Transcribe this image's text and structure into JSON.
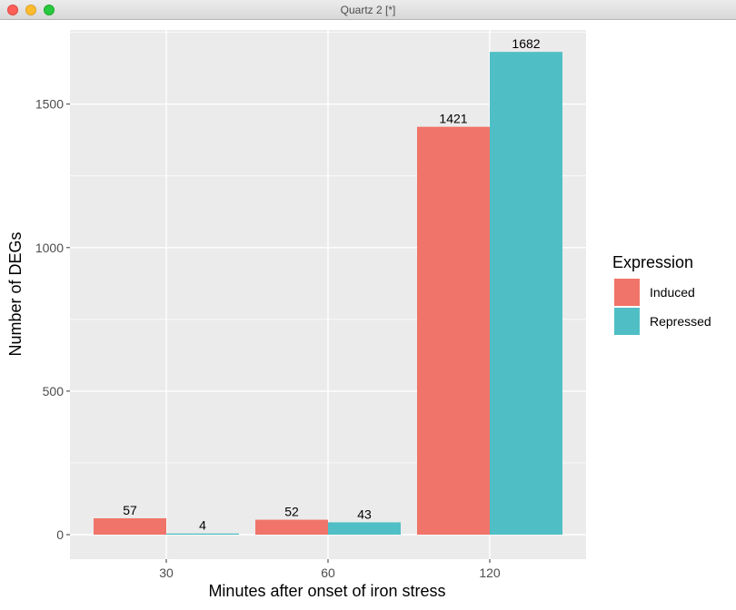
{
  "window": {
    "title": "Quartz 2 [*]"
  },
  "colors": {
    "induced": "#f07469",
    "repressed": "#4fbfc5",
    "panel": "#ebebeb",
    "grid": "#ffffff",
    "text_dark": "#000000",
    "tick_text": "#4d4d4d"
  },
  "chart_data": {
    "type": "bar",
    "categories": [
      "30",
      "60",
      "120"
    ],
    "series": [
      {
        "name": "Induced",
        "values": [
          57,
          52,
          1421
        ]
      },
      {
        "name": "Repressed",
        "values": [
          4,
          43,
          1682
        ]
      }
    ],
    "xlabel": "Minutes after onset of iron stress",
    "ylabel": "Number of DEGs",
    "ylim": [
      0,
      1750
    ],
    "yticks": [
      "0",
      "500",
      "1000",
      "1500"
    ],
    "legend": {
      "title": "Expression",
      "placement": "right"
    },
    "grid": true
  }
}
